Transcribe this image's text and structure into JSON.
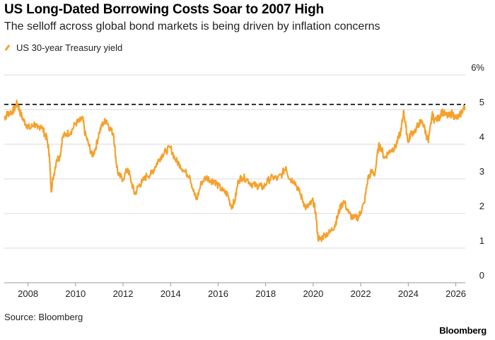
{
  "header": {
    "title": "US Long-Dated Borrowing Costs Soar to 2007 High",
    "subtitle": "The selloff across global bond markets is being driven by inflation concerns"
  },
  "footer": {
    "source": "Source: Bloomberg",
    "brand": "Bloomberg"
  },
  "colors": {
    "series": "#f5a12c",
    "grid": "#d9d9d9",
    "reference": "#000000"
  },
  "chart_data": {
    "type": "line",
    "legend_position": "top-left",
    "grid": true,
    "xlim": [
      2007.0,
      2026.4
    ],
    "ylim": [
      0,
      6
    ],
    "x_ticks": [
      2008,
      2010,
      2012,
      2014,
      2016,
      2018,
      2020,
      2022,
      2024,
      2026
    ],
    "x_tick_labels": [
      "2008",
      "2010",
      "2012",
      "2014",
      "2016",
      "2018",
      "2020",
      "2022",
      "2024",
      "2026"
    ],
    "y_ticks": [
      0,
      1,
      2,
      3,
      4,
      5,
      6
    ],
    "y_tick_labels": [
      "0",
      "1",
      "2",
      "3",
      "4",
      "5",
      "6%"
    ],
    "reference_line": {
      "y": 5.15,
      "style": "dashed"
    },
    "series": [
      {
        "name": "US 30-year Treasury yield",
        "x": [
          2007.0,
          2007.1,
          2007.2,
          2007.35,
          2007.45,
          2007.55,
          2007.65,
          2007.8,
          2007.95,
          2008.1,
          2008.25,
          2008.4,
          2008.55,
          2008.7,
          2008.8,
          2008.9,
          2008.97,
          2009.05,
          2009.2,
          2009.35,
          2009.45,
          2009.6,
          2009.8,
          2010.0,
          2010.15,
          2010.3,
          2010.4,
          2010.55,
          2010.7,
          2010.85,
          2011.0,
          2011.15,
          2011.3,
          2011.45,
          2011.6,
          2011.7,
          2011.8,
          2012.0,
          2012.2,
          2012.35,
          2012.5,
          2012.65,
          2012.8,
          2013.0,
          2013.2,
          2013.35,
          2013.5,
          2013.65,
          2013.8,
          2014.0,
          2014.2,
          2014.4,
          2014.6,
          2014.8,
          2015.0,
          2015.1,
          2015.3,
          2015.5,
          2015.7,
          2015.85,
          2016.0,
          2016.2,
          2016.4,
          2016.55,
          2016.7,
          2016.85,
          2017.0,
          2017.2,
          2017.4,
          2017.6,
          2017.75,
          2017.9,
          2018.1,
          2018.3,
          2018.5,
          2018.7,
          2018.85,
          2019.0,
          2019.2,
          2019.4,
          2019.55,
          2019.7,
          2019.85,
          2020.0,
          2020.1,
          2020.2,
          2020.3,
          2020.5,
          2020.7,
          2020.9,
          2021.0,
          2021.15,
          2021.3,
          2021.5,
          2021.7,
          2021.9,
          2022.0,
          2022.15,
          2022.3,
          2022.45,
          2022.6,
          2022.75,
          2022.85,
          2023.0,
          2023.15,
          2023.3,
          2023.45,
          2023.6,
          2023.7,
          2023.8,
          2023.9,
          2024.0,
          2024.1,
          2024.3,
          2024.45,
          2024.6,
          2024.75,
          2024.85,
          2025.0,
          2025.1,
          2025.3,
          2025.4,
          2025.55,
          2025.7,
          2025.85,
          2026.0,
          2026.15,
          2026.3,
          2026.38
        ],
        "y": [
          4.75,
          4.85,
          4.9,
          4.95,
          5.05,
          5.2,
          4.95,
          4.7,
          4.55,
          4.45,
          4.6,
          4.45,
          4.55,
          4.3,
          4.15,
          3.7,
          2.65,
          3.0,
          3.55,
          3.65,
          4.2,
          4.3,
          4.35,
          4.6,
          4.65,
          4.75,
          4.3,
          4.0,
          3.65,
          3.9,
          4.35,
          4.6,
          4.7,
          4.45,
          4.3,
          3.55,
          3.1,
          3.0,
          3.3,
          2.9,
          2.55,
          2.8,
          2.9,
          3.1,
          3.15,
          3.35,
          3.55,
          3.7,
          3.8,
          3.9,
          3.55,
          3.4,
          3.2,
          3.1,
          2.55,
          2.4,
          2.9,
          3.05,
          2.95,
          2.95,
          2.8,
          2.65,
          2.55,
          2.2,
          2.35,
          2.95,
          3.05,
          3.0,
          2.85,
          2.8,
          2.8,
          2.75,
          2.95,
          3.05,
          3.0,
          3.15,
          3.35,
          3.0,
          2.95,
          2.65,
          2.4,
          2.15,
          2.25,
          2.35,
          2.05,
          1.3,
          1.25,
          1.4,
          1.45,
          1.65,
          1.85,
          2.2,
          2.35,
          2.0,
          1.85,
          1.9,
          2.05,
          2.3,
          3.0,
          3.2,
          3.15,
          3.95,
          3.9,
          3.6,
          3.75,
          3.85,
          3.9,
          4.2,
          4.4,
          4.95,
          4.5,
          4.05,
          4.3,
          4.4,
          4.6,
          4.65,
          4.3,
          4.05,
          4.85,
          4.7,
          4.75,
          4.95,
          4.85,
          4.8,
          4.9,
          4.75,
          4.8,
          5.0,
          5.1
        ]
      }
    ]
  }
}
